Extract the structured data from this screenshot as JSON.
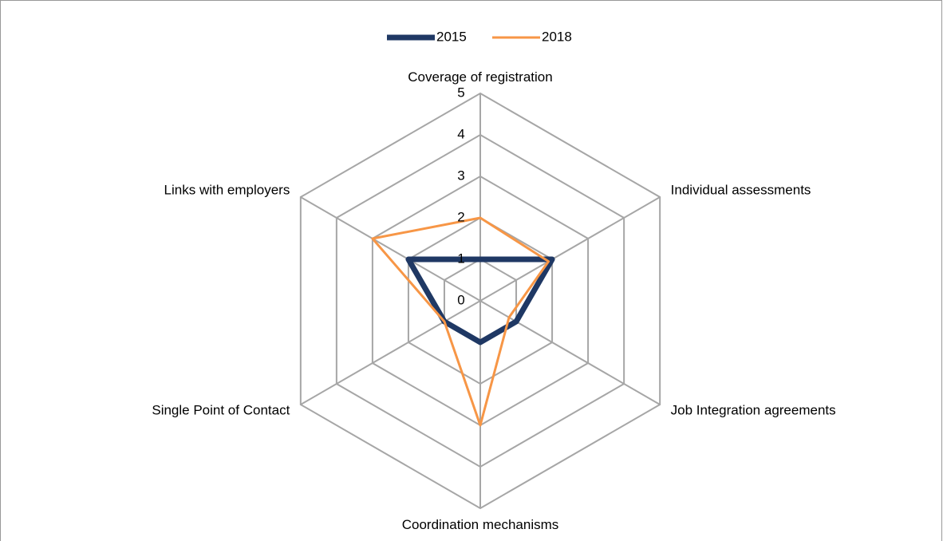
{
  "chart_data": {
    "type": "radar",
    "categories": [
      "Coverage of registration",
      "Individual assessments",
      "Job Integration agreements",
      "Coordination mechanisms",
      "Single Point of Contact",
      "Links with employers"
    ],
    "series": [
      {
        "name": "2015",
        "color": "#1f3864",
        "values": [
          1,
          2,
          1,
          1,
          1,
          2
        ]
      },
      {
        "name": "2018",
        "color": "#f79646",
        "values": [
          2,
          1.9,
          0.8,
          3,
          1,
          3
        ]
      }
    ],
    "rlim": [
      0,
      5
    ],
    "rticks": [
      0,
      1,
      2,
      3,
      4,
      5
    ],
    "grid": true,
    "legend": "top"
  }
}
